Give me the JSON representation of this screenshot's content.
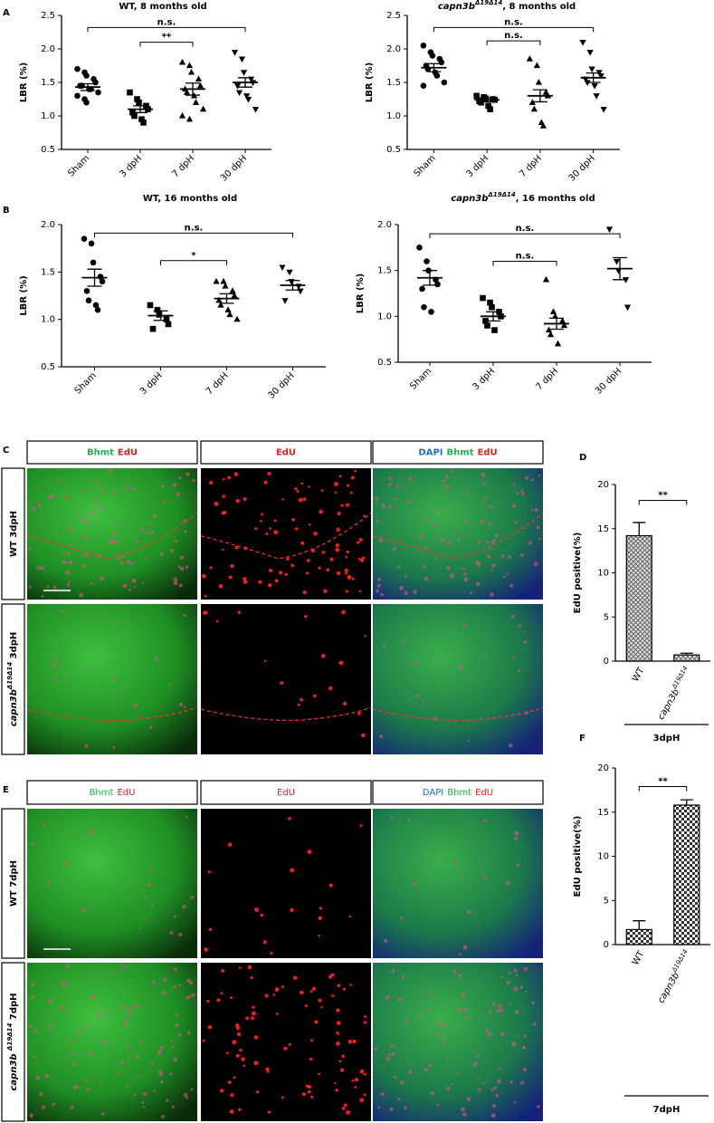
{
  "panel_letters": [
    "A",
    "B",
    "C",
    "D",
    "E",
    "F"
  ],
  "chart_data": [
    {
      "type": "dotplot",
      "title": "WT, 8 months old",
      "ylabel": "LBR (%)",
      "categories": [
        "Sham",
        "3 dpH",
        "7 dpH",
        "30 dpH"
      ],
      "markers": [
        "circle",
        "square",
        "triangle-up",
        "triangle-down"
      ],
      "color": "#000000",
      "ylim": [
        0.5,
        2.5
      ],
      "yticks": [
        0.5,
        {
          "value": 1.0,
          "label": "1.0"
        },
        1.5,
        {
          "value": 2.0,
          "label": "2.0"
        },
        2.5
      ],
      "points": [
        [
          1.7,
          1.65,
          1.6,
          1.55,
          1.5,
          1.45,
          1.45,
          1.4,
          1.4,
          1.35,
          1.3,
          1.25,
          1.2
        ],
        [
          1.35,
          1.25,
          1.2,
          1.15,
          1.1,
          1.05,
          1.0,
          0.95,
          0.9
        ],
        [
          1.8,
          1.75,
          1.65,
          1.55,
          1.45,
          1.4,
          1.35,
          1.3,
          1.2,
          1.1,
          1.0,
          0.95
        ],
        [
          1.95,
          1.85,
          1.65,
          1.55,
          1.5,
          1.45,
          1.35,
          1.3,
          1.25,
          1.1
        ]
      ],
      "means": [
        1.43,
        1.1,
        1.4,
        1.5
      ],
      "sems": [
        0.05,
        0.05,
        0.09,
        0.07
      ],
      "comparisons": [
        {
          "from": "Sham",
          "to": "30 dpH",
          "y": 2.32,
          "label": "n.s."
        },
        {
          "from": "3 dpH",
          "to": "7 dpH",
          "y": 2.1,
          "label": "**"
        }
      ]
    },
    {
      "type": "dotplot",
      "title_gene": "capn3b",
      "title_allele": "Δ19Δ14",
      "title_rest": ", 8 months old",
      "ylabel": "LBR (%)",
      "categories": [
        "Sham",
        "3 dpH",
        "7 dpH",
        "30 dpH"
      ],
      "markers": [
        "circle",
        "square",
        "triangle-up",
        "triangle-down"
      ],
      "color": "#000000",
      "ylim": [
        0.5,
        2.5
      ],
      "yticks": [
        0.5,
        {
          "value": 1.0,
          "label": "1.0"
        },
        1.5,
        {
          "value": 2.0,
          "label": "2.0"
        },
        2.5
      ],
      "points": [
        [
          2.05,
          1.95,
          1.9,
          1.85,
          1.8,
          1.75,
          1.7,
          1.65,
          1.6,
          1.5,
          1.45
        ],
        [
          1.3,
          1.28,
          1.26,
          1.25,
          1.24,
          1.22,
          1.2,
          1.15,
          1.1
        ],
        [
          1.85,
          1.75,
          1.5,
          1.35,
          1.3,
          1.2,
          1.1,
          0.9,
          0.85
        ],
        [
          2.1,
          1.95,
          1.7,
          1.65,
          1.6,
          1.55,
          1.5,
          1.45,
          1.3,
          1.1
        ]
      ],
      "means": [
        1.72,
        1.24,
        1.3,
        1.57
      ],
      "sems": [
        0.06,
        0.03,
        0.09,
        0.07
      ],
      "comparisons": [
        {
          "from": "Sham",
          "to": "30 dpH",
          "y": 2.32,
          "label": "n.s."
        },
        {
          "from": "3 dpH",
          "to": "7 dpH",
          "y": 2.12,
          "label": "n.s."
        }
      ]
    },
    {
      "type": "dotplot",
      "title": "WT, 16 months old",
      "ylabel": "LBR (%)",
      "categories": [
        "Sham",
        "3 dpH",
        "7 dpH",
        "30 dpH"
      ],
      "markers": [
        "circle",
        "square",
        "triangle-up",
        "triangle-down"
      ],
      "color": "#000000",
      "ylim": [
        0.5,
        2.0
      ],
      "yticks": [
        0.5,
        {
          "value": 1.0,
          "label": "1.0"
        },
        1.5,
        {
          "value": 2.0,
          "label": "2.0"
        }
      ],
      "points": [
        [
          1.85,
          1.8,
          1.6,
          1.45,
          1.4,
          1.3,
          1.2,
          1.15,
          1.1
        ],
        [
          1.15,
          1.1,
          1.05,
          1.0,
          0.95,
          0.9
        ],
        [
          1.4,
          1.4,
          1.35,
          1.3,
          1.25,
          1.2,
          1.15,
          1.1,
          1.05,
          1.0
        ],
        [
          1.55,
          1.5,
          1.4,
          1.35,
          1.3,
          1.2
        ]
      ],
      "means": [
        1.44,
        1.04,
        1.22,
        1.36
      ],
      "sems": [
        0.09,
        0.05,
        0.05,
        0.05
      ],
      "comparisons": [
        {
          "from": "Sham",
          "to": "30 dpH",
          "y": 1.91,
          "label": "n.s."
        },
        {
          "from": "3 dpH",
          "to": "7 dpH",
          "y": 1.62,
          "label": "*"
        }
      ]
    },
    {
      "type": "dotplot",
      "title_gene": "capn3b",
      "title_allele": "Δ19Δ14",
      "title_rest": ", 16 months old",
      "ylabel": "LBR (%)",
      "categories": [
        "Sham",
        "3 dpH",
        "7 dpH",
        "30 dpH"
      ],
      "markers": [
        "circle",
        "square",
        "triangle-up",
        "triangle-down"
      ],
      "color": "#000000",
      "ylim": [
        0.5,
        2.0
      ],
      "yticks": [
        0.5,
        {
          "value": 1.0,
          "label": "1.0"
        },
        1.5,
        {
          "value": 2.0,
          "label": "2.0"
        }
      ],
      "points": [
        [
          1.75,
          1.6,
          1.5,
          1.4,
          1.35,
          1.3,
          1.1,
          1.05
        ],
        [
          1.2,
          1.15,
          1.1,
          1.05,
          1.0,
          0.95,
          0.9,
          0.85
        ],
        [
          1.4,
          1.05,
          1.0,
          0.95,
          0.9,
          0.85,
          0.8,
          0.7
        ],
        [
          1.95,
          1.6,
          1.5,
          1.4,
          1.1
        ]
      ],
      "means": [
        1.42,
        1.0,
        0.92,
        1.52
      ],
      "sems": [
        0.08,
        0.05,
        0.06,
        0.12
      ],
      "comparisons": [
        {
          "from": "Sham",
          "to": "30 dpH",
          "y": 1.9,
          "label": "n.s."
        },
        {
          "from": "3 dpH",
          "to": "7 dpH",
          "y": 1.6,
          "label": "n.s."
        }
      ]
    },
    {
      "type": "bar",
      "ylabel": "EdU positive(%)",
      "group": "3dpH",
      "categories": [
        "WT",
        {
          "gene": "capn3b",
          "allele": "Δ19Δ14"
        }
      ],
      "values": [
        14.2,
        0.7
      ],
      "errors": [
        1.5,
        0.2
      ],
      "pattern": "crosshatch",
      "ylim": [
        0,
        20
      ],
      "yticks": [
        0,
        5,
        10,
        15,
        20
      ],
      "comparison": {
        "from": "WT",
        "to": "capn3b",
        "y": 18.2,
        "label": "**"
      }
    },
    {
      "type": "bar",
      "ylabel": "EdU positive(%)",
      "group": "7dpH",
      "categories": [
        "WT",
        {
          "gene": "capn3b",
          "allele": "Δ19Δ14"
        }
      ],
      "values": [
        1.7,
        15.8
      ],
      "errors": [
        1.0,
        0.6
      ],
      "pattern": "checker",
      "ylim": [
        0,
        20
      ],
      "yticks": [
        0,
        5,
        10,
        15,
        20
      ],
      "comparison": {
        "from": "WT",
        "to": "capn3b",
        "y": 17.9,
        "label": "**"
      }
    }
  ],
  "image_panels": [
    {
      "headers": [
        {
          "words": [
            "Bhmt",
            "EdU"
          ],
          "colors": [
            "#22b14c",
            "#e3211c"
          ]
        },
        {
          "words": [
            "EdU"
          ],
          "colors": [
            "#e3211c"
          ]
        },
        {
          "words": [
            "DAPI",
            "Bhmt",
            "EdU"
          ],
          "colors": [
            "#1f6fc4",
            "#22b14c",
            "#e3211c"
          ]
        }
      ],
      "rows": [
        {
          "text": "WT 3dpH"
        },
        {
          "gene": "capn3b",
          "allele": "Δ19Δ14",
          "rest": " 3dpH"
        }
      ]
    },
    {
      "headers": [
        {
          "words": [
            "Bhmt",
            "EdU"
          ],
          "colors": [
            "#22b14c",
            "#e3211c"
          ]
        },
        {
          "words": [
            "EdU"
          ],
          "colors": [
            "#e3211c"
          ]
        },
        {
          "words": [
            "DAPI",
            "Bhmt",
            "EdU"
          ],
          "colors": [
            "#1f6fc4",
            "#22b14c",
            "#e3211c"
          ]
        }
      ],
      "rows": [
        {
          "text": "WT 7dpH"
        },
        {
          "gene": "capn3b ",
          "allele": "Δ19Δ14",
          "rest": " 7dpH"
        }
      ]
    }
  ]
}
